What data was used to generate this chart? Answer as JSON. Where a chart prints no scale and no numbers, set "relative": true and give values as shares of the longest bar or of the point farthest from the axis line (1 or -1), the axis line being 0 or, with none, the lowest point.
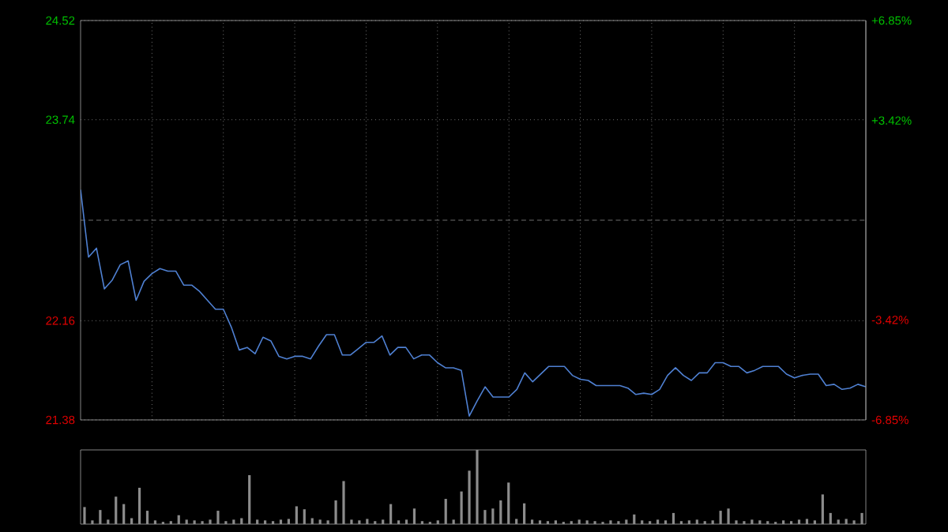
{
  "chart_data": [
    {
      "type": "line",
      "categories": [
        null,
        null,
        null,
        null,
        null,
        null,
        null,
        null,
        null,
        null,
        null,
        null,
        null,
        null,
        null,
        null,
        null,
        null,
        null,
        null,
        null,
        null,
        null,
        null,
        null,
        null,
        null,
        null,
        null,
        null,
        null,
        null,
        null,
        null,
        null,
        null,
        null,
        null,
        null,
        null,
        null,
        null,
        null,
        null,
        null,
        null,
        null,
        null,
        null,
        null,
        null,
        null,
        null,
        null,
        null,
        null,
        null,
        null,
        null,
        null,
        null,
        null,
        null,
        null,
        null,
        null,
        null,
        null,
        null,
        null,
        null,
        null,
        null,
        null,
        null,
        null,
        null,
        null,
        null,
        null,
        null,
        null,
        null,
        null,
        null,
        null,
        null,
        null,
        null,
        null,
        null,
        null,
        null,
        null,
        null,
        null,
        null,
        null,
        null,
        null
      ],
      "values": [
        23.19,
        22.66,
        22.73,
        22.41,
        22.48,
        22.6,
        22.63,
        22.32,
        22.47,
        22.53,
        22.57,
        22.55,
        22.55,
        22.44,
        22.44,
        22.39,
        22.32,
        22.25,
        22.25,
        22.11,
        21.93,
        21.95,
        21.9,
        22.03,
        22.0,
        21.88,
        21.86,
        21.88,
        21.88,
        21.86,
        21.96,
        22.05,
        22.05,
        21.89,
        21.89,
        21.94,
        21.99,
        21.99,
        22.04,
        21.89,
        21.95,
        21.95,
        21.86,
        21.89,
        21.89,
        21.83,
        21.79,
        21.79,
        21.77,
        21.41,
        21.53,
        21.64,
        21.56,
        21.56,
        21.56,
        21.62,
        21.75,
        21.68,
        21.74,
        21.8,
        21.8,
        21.8,
        21.73,
        21.7,
        21.69,
        21.65,
        21.65,
        21.65,
        21.65,
        21.63,
        21.58,
        21.59,
        21.58,
        21.62,
        21.73,
        21.79,
        21.73,
        21.69,
        21.75,
        21.75,
        21.83,
        21.83,
        21.8,
        21.8,
        21.75,
        21.77,
        21.8,
        21.8,
        21.8,
        21.74,
        21.71,
        21.73,
        21.74,
        21.74,
        21.65,
        21.66,
        21.62,
        21.63,
        21.66,
        21.64
      ],
      "color": "#4f80d2",
      "ylim": [
        21.38,
        24.52
      ],
      "yticks": [
        21.38,
        22.16,
        23.74,
        24.52
      ],
      "y2lim": [
        -6.85,
        6.85
      ],
      "y2ticks": [
        {
          "value": -6.85,
          "label": "-6.85%"
        },
        {
          "value": -3.42,
          "label": "-3.42%"
        },
        {
          "value": 3.42,
          "label": "+3.42%"
        },
        {
          "value": 6.85,
          "label": "+6.85%"
        }
      ],
      "ref_lines": [
        {
          "axis": "y",
          "value": 22.95,
          "line_style": "dashed",
          "color": "#8c8c8c"
        }
      ],
      "grid": true,
      "tick_labels": "y",
      "marker": "none",
      "line_style": "solid"
    },
    {
      "type": "bar",
      "relative": true,
      "categories": [
        null,
        null,
        null,
        null,
        null,
        null,
        null,
        null,
        null,
        null,
        null,
        null,
        null,
        null,
        null,
        null,
        null,
        null,
        null,
        null,
        null,
        null,
        null,
        null,
        null,
        null,
        null,
        null,
        null,
        null,
        null,
        null,
        null,
        null,
        null,
        null,
        null,
        null,
        null,
        null,
        null,
        null,
        null,
        null,
        null,
        null,
        null,
        null,
        null,
        null,
        null,
        null,
        null,
        null,
        null,
        null,
        null,
        null,
        null,
        null,
        null,
        null,
        null,
        null,
        null,
        null,
        null,
        null,
        null,
        null,
        null,
        null,
        null,
        null,
        null,
        null,
        null,
        null,
        null,
        null,
        null,
        null,
        null,
        null,
        null,
        null,
        null,
        null,
        null,
        null,
        null,
        null,
        null,
        null,
        null,
        null,
        null,
        null,
        null,
        null
      ],
      "values": [
        0.23,
        0.05,
        0.19,
        0.06,
        0.37,
        0.27,
        0.08,
        0.49,
        0.18,
        0.05,
        0.03,
        0.04,
        0.12,
        0.06,
        0.05,
        0.04,
        0.06,
        0.18,
        0.04,
        0.06,
        0.08,
        0.66,
        0.06,
        0.05,
        0.04,
        0.06,
        0.07,
        0.24,
        0.2,
        0.08,
        0.06,
        0.05,
        0.32,
        0.58,
        0.06,
        0.05,
        0.07,
        0.04,
        0.06,
        0.27,
        0.05,
        0.06,
        0.21,
        0.04,
        0.03,
        0.05,
        0.34,
        0.06,
        0.44,
        0.72,
        1.0,
        0.19,
        0.21,
        0.32,
        0.56,
        0.07,
        0.28,
        0.06,
        0.05,
        0.04,
        0.05,
        0.03,
        0.04,
        0.06,
        0.05,
        0.04,
        0.03,
        0.05,
        0.04,
        0.06,
        0.13,
        0.05,
        0.04,
        0.06,
        0.05,
        0.15,
        0.04,
        0.05,
        0.06,
        0.04,
        0.05,
        0.18,
        0.21,
        0.05,
        0.04,
        0.06,
        0.05,
        0.04,
        0.03,
        0.05,
        0.04,
        0.06,
        0.07,
        0.05,
        0.4,
        0.15,
        0.06,
        0.07,
        0.05,
        0.15
      ],
      "color": "#8c8c8c",
      "tick_labels": false
    }
  ]
}
